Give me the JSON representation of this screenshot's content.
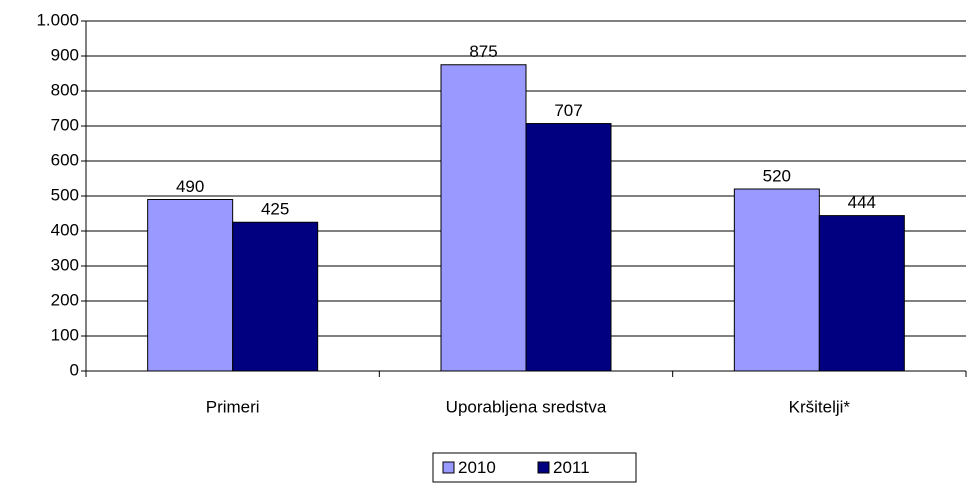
{
  "chart_data": {
    "type": "bar",
    "categories": [
      "Primeri",
      "Uporabljena sredstva",
      "Kršitelji*"
    ],
    "series": [
      {
        "name": "2010",
        "color": "#9999ff",
        "values": [
          490,
          875,
          520
        ]
      },
      {
        "name": "2011",
        "color": "#000080",
        "values": [
          425,
          707,
          444
        ]
      }
    ],
    "ylim": [
      0,
      1000
    ],
    "yticks": [
      0,
      100,
      200,
      300,
      400,
      500,
      600,
      700,
      800,
      900,
      {
        "value": 1000,
        "label": "1.000"
      }
    ],
    "grid": true,
    "legend": "bottom"
  }
}
